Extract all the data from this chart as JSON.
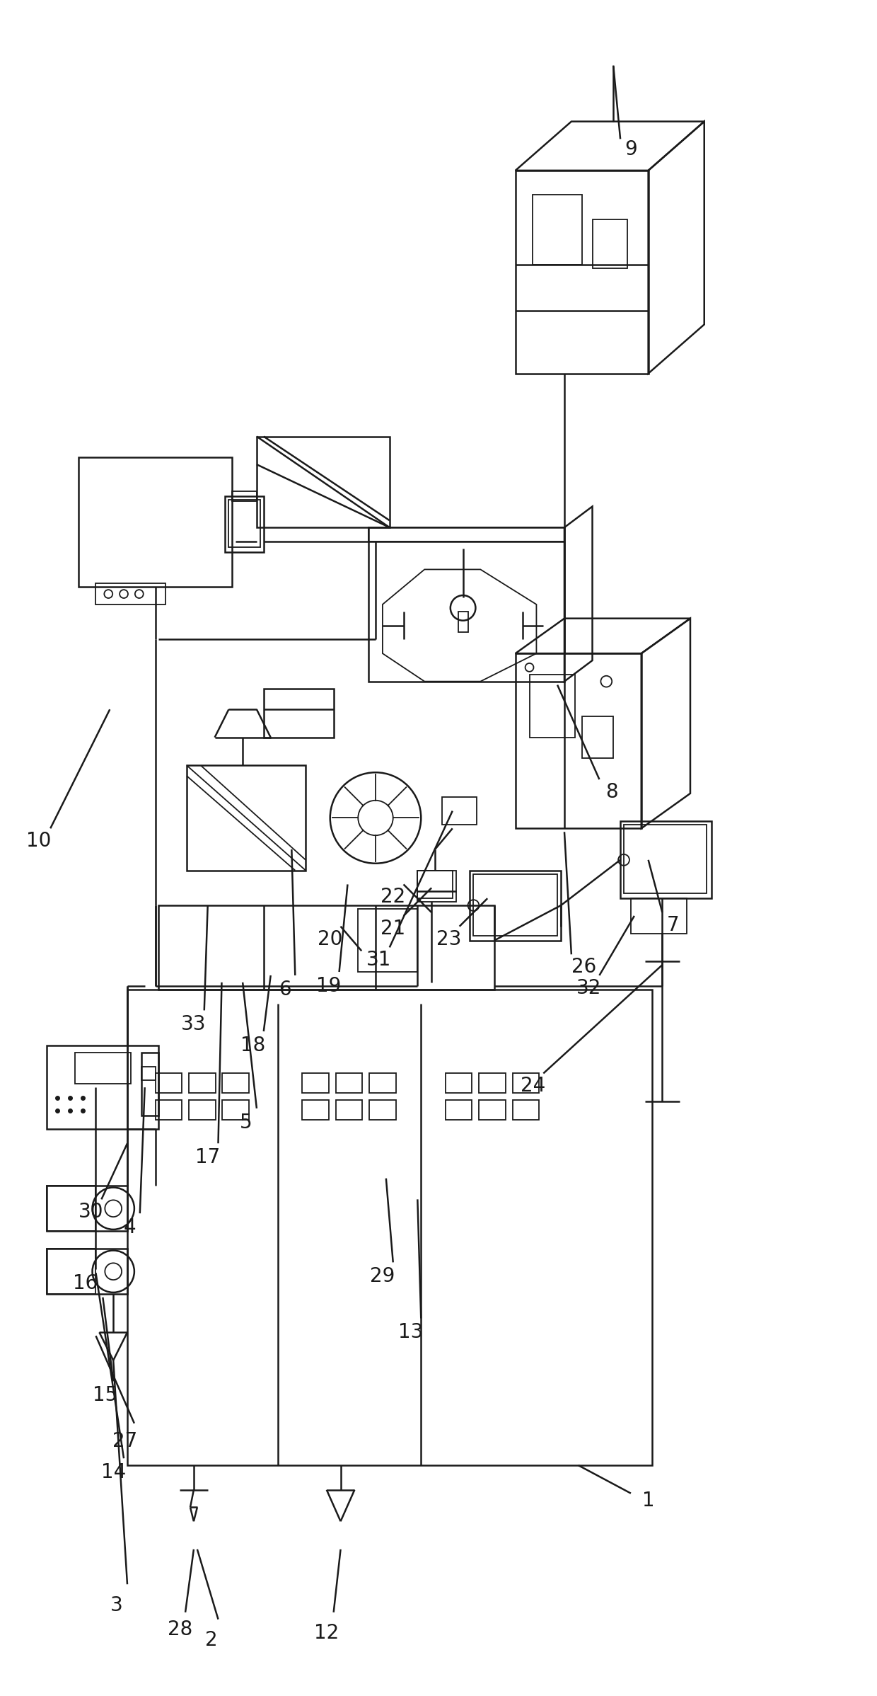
{
  "bg_color": "#ffffff",
  "line_color": "#1a1a1a",
  "fig_width": 12.4,
  "fig_height": 23.96
}
